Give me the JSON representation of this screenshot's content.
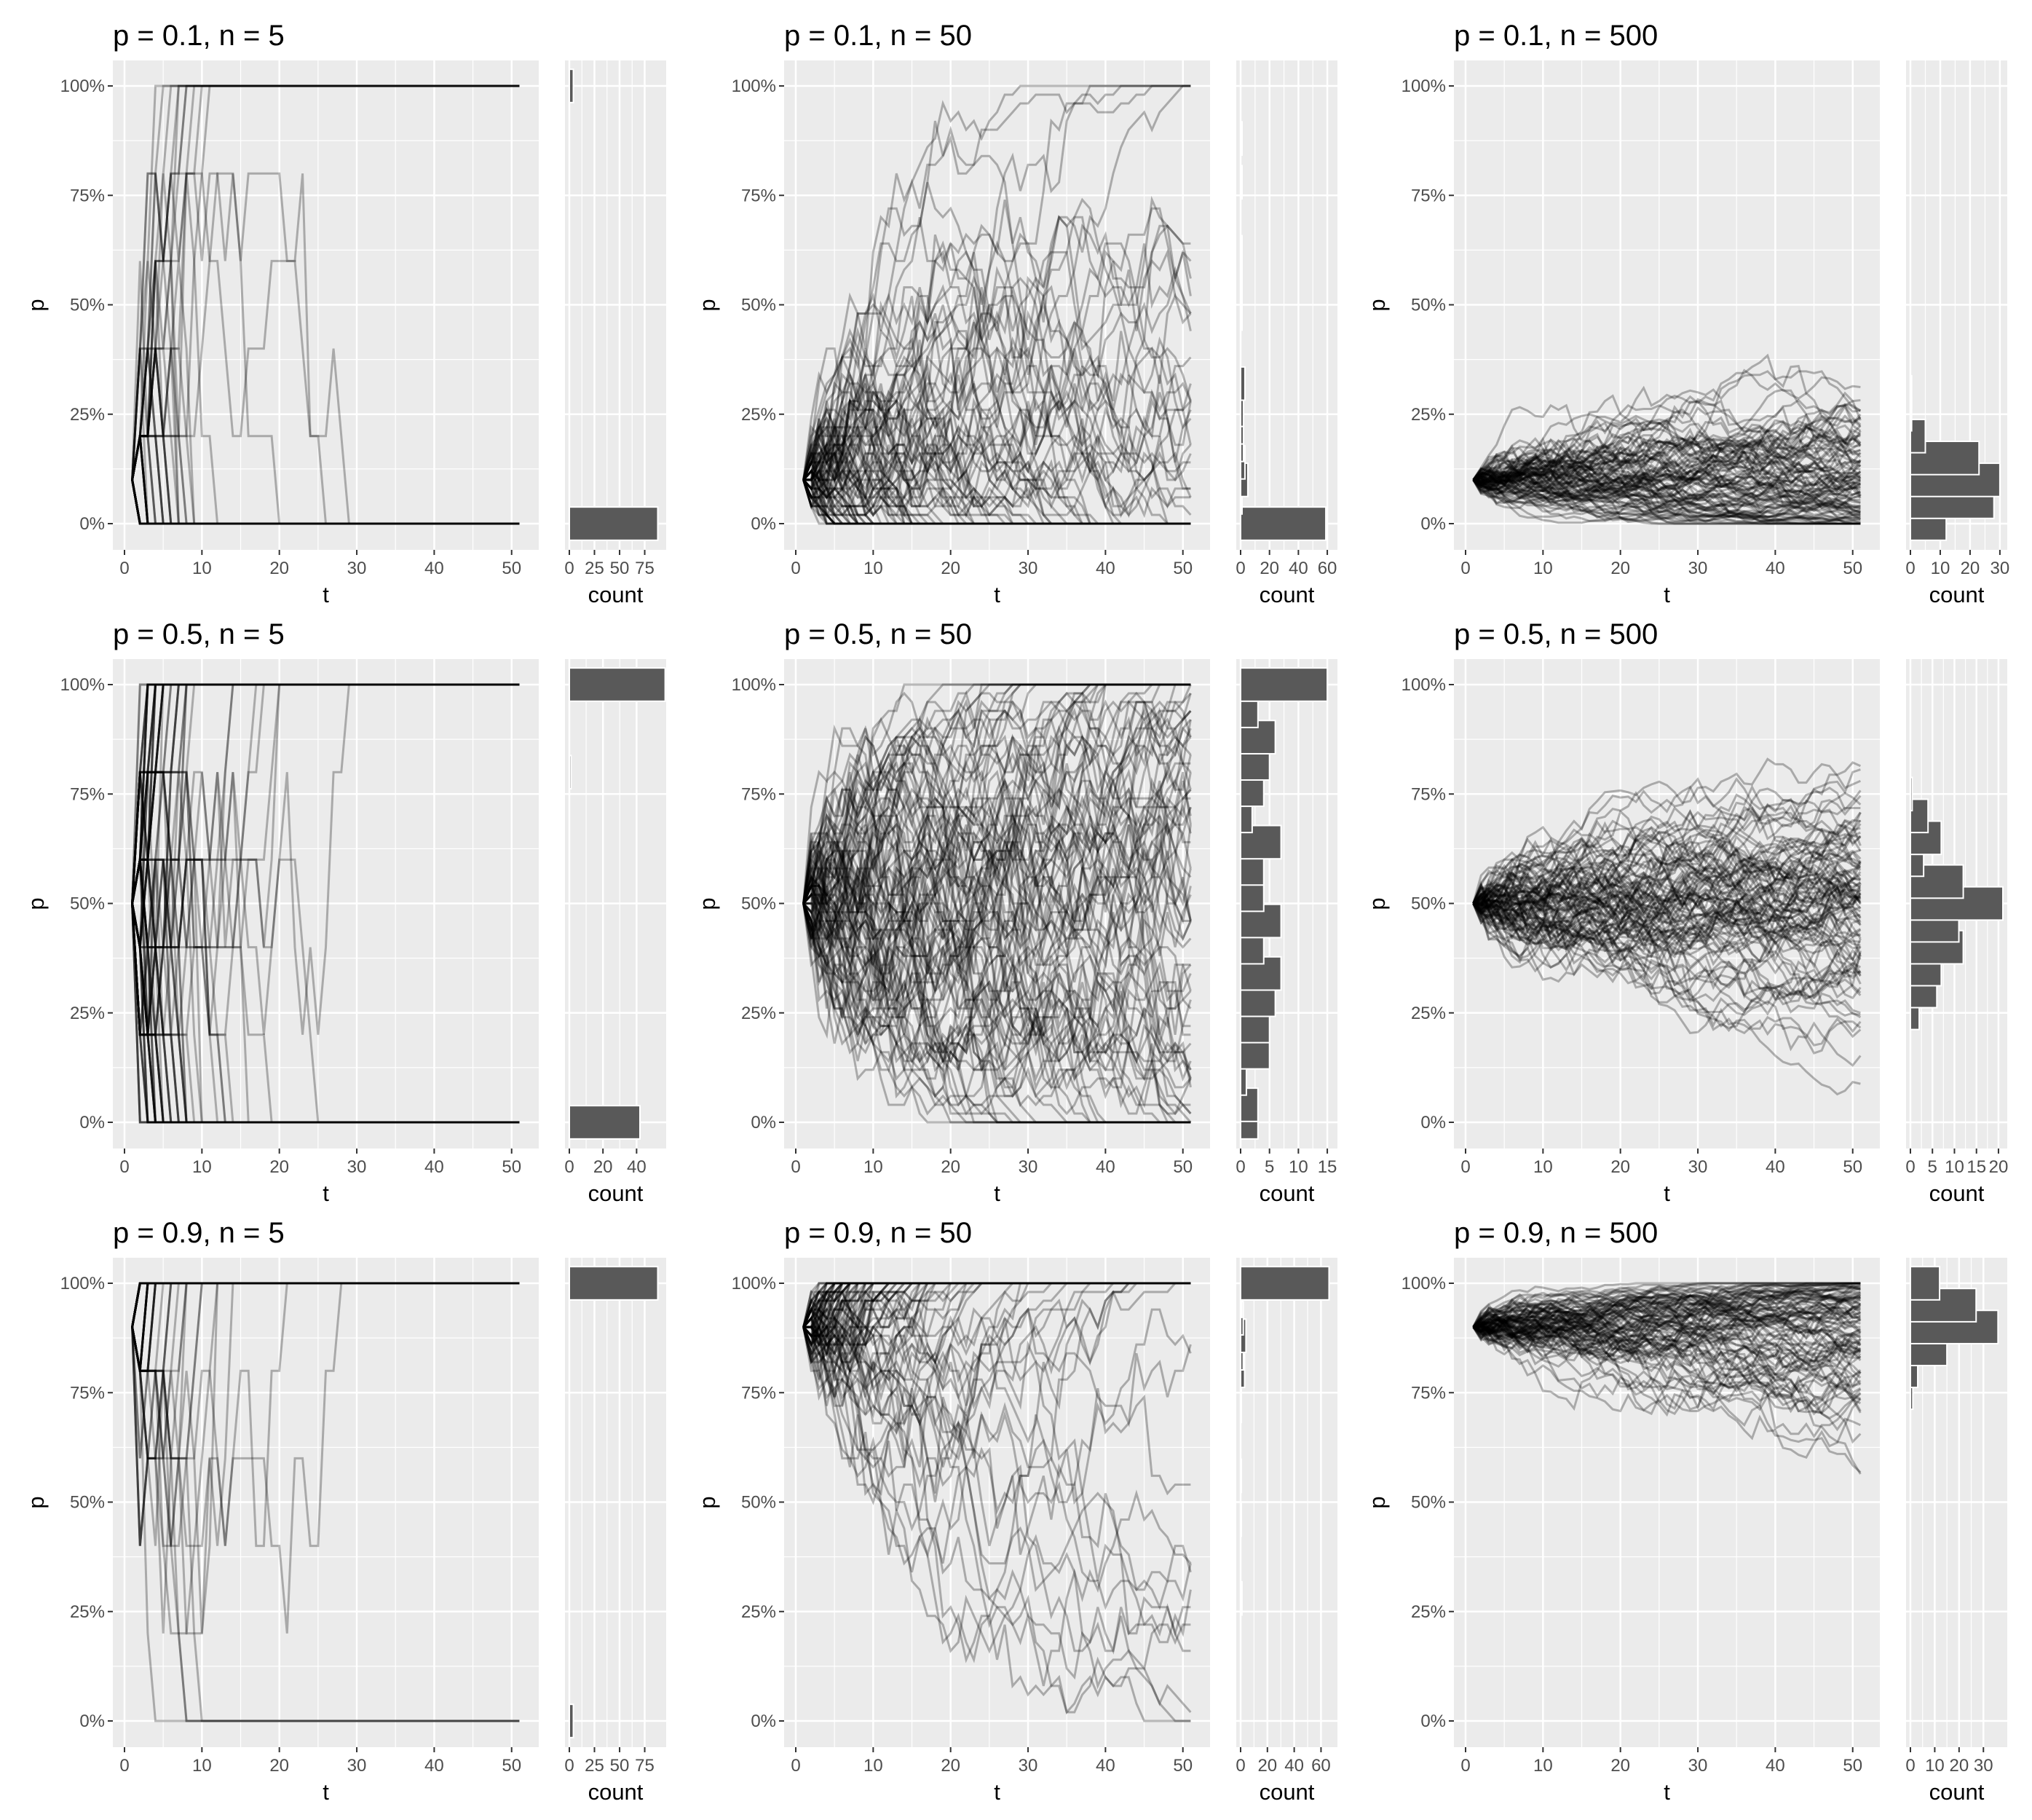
{
  "figure": {
    "background": "#ffffff",
    "panel_background": "#ebebeb",
    "grid_color": "#ffffff",
    "line_color": "#000000",
    "bar_fill": "#595959",
    "bar_outline": "#ffffff",
    "tick_color": "#333333"
  },
  "chart_data": [
    {
      "title": "p = 0.1, n = 5",
      "p0": 0.1,
      "n": 5,
      "type": "line",
      "xlabel": "t",
      "ylabel": "p",
      "xlim": [
        0,
        52
      ],
      "ylim": [
        0,
        1
      ],
      "x_ticks": [
        0,
        10,
        20,
        30,
        40,
        50
      ],
      "y_ticks": [
        "0%",
        "25%",
        "50%",
        "75%",
        "100%"
      ],
      "lines_description_count": 100,
      "hist": {
        "xlabel": "count",
        "x_ticks": [
          0,
          25,
          50,
          75
        ],
        "xlim": [
          0,
          92
        ],
        "bins": [
          {
            "p": 0.0,
            "count": 88
          },
          {
            "p": 1.0,
            "count": 4
          }
        ]
      }
    },
    {
      "title": "p = 0.1, n = 50",
      "p0": 0.1,
      "n": 50,
      "type": "line",
      "xlabel": "t",
      "ylabel": "p",
      "xlim": [
        0,
        52
      ],
      "ylim": [
        0,
        1
      ],
      "x_ticks": [
        0,
        10,
        20,
        30,
        40,
        50
      ],
      "y_ticks": [
        "0%",
        "25%",
        "50%",
        "75%",
        "100%"
      ],
      "hist": {
        "xlabel": "count",
        "x_ticks": [
          0,
          20,
          40,
          60
        ],
        "xlim": [
          0,
          64
        ],
        "bins": [
          {
            "p": 0.0,
            "count": 59
          },
          {
            "p": 0.06,
            "count": 1
          },
          {
            "p": 0.1,
            "count": 5
          },
          {
            "p": 0.14,
            "count": 3
          },
          {
            "p": 0.18,
            "count": 2
          },
          {
            "p": 0.22,
            "count": 2
          },
          {
            "p": 0.26,
            "count": 2
          },
          {
            "p": 0.32,
            "count": 3
          },
          {
            "p": 0.48,
            "count": 1
          },
          {
            "p": 0.52,
            "count": 1
          },
          {
            "p": 0.56,
            "count": 1
          },
          {
            "p": 0.6,
            "count": 1
          },
          {
            "p": 0.62,
            "count": 1
          },
          {
            "p": 0.78,
            "count": 1
          },
          {
            "p": 0.88,
            "count": 1
          }
        ]
      }
    },
    {
      "title": "p = 0.1, n = 500",
      "p0": 0.1,
      "n": 500,
      "type": "line",
      "xlabel": "t",
      "ylabel": "p",
      "xlim": [
        0,
        52
      ],
      "ylim": [
        0,
        1
      ],
      "x_ticks": [
        0,
        10,
        20,
        30,
        40,
        50
      ],
      "y_ticks": [
        "0%",
        "25%",
        "50%",
        "75%",
        "100%"
      ],
      "hist": {
        "xlabel": "count",
        "x_ticks": [
          0,
          10,
          20,
          30
        ],
        "xlim": [
          0,
          31
        ],
        "bins": [
          {
            "p": 0.0,
            "count": 12
          },
          {
            "p": 0.05,
            "count": 28
          },
          {
            "p": 0.1,
            "count": 30
          },
          {
            "p": 0.15,
            "count": 23
          },
          {
            "p": 0.2,
            "count": 5
          },
          {
            "p": 0.25,
            "count": 0.4
          },
          {
            "p": 0.3,
            "count": 0.4
          }
        ]
      }
    },
    {
      "title": "p = 0.5, n = 5",
      "p0": 0.5,
      "n": 5,
      "type": "line",
      "xlabel": "t",
      "ylabel": "p",
      "xlim": [
        0,
        52
      ],
      "ylim": [
        0,
        1
      ],
      "x_ticks": [
        0,
        10,
        20,
        30,
        40,
        50
      ],
      "y_ticks": [
        "0%",
        "25%",
        "50%",
        "75%",
        "100%"
      ],
      "hist": {
        "xlabel": "count",
        "x_ticks": [
          0,
          20,
          40
        ],
        "xlim": [
          0,
          55
        ],
        "bins": [
          {
            "p": 0.0,
            "count": 42
          },
          {
            "p": 0.8,
            "count": 1
          },
          {
            "p": 1.0,
            "count": 57
          }
        ]
      }
    },
    {
      "title": "p = 0.5, n = 50",
      "p0": 0.5,
      "n": 50,
      "type": "line",
      "xlabel": "t",
      "ylabel": "p",
      "xlim": [
        0,
        52
      ],
      "ylim": [
        0,
        1
      ],
      "x_ticks": [
        0,
        10,
        20,
        30,
        40,
        50
      ],
      "y_ticks": [
        "0%",
        "25%",
        "50%",
        "75%",
        "100%"
      ],
      "hist": {
        "xlabel": "count",
        "x_ticks": [
          0,
          5,
          10,
          15
        ],
        "xlim": [
          0,
          16
        ],
        "bins": [
          {
            "p": 0.0,
            "count": 3
          },
          {
            "p": 0.04,
            "count": 3
          },
          {
            "p": 0.1,
            "count": 1
          },
          {
            "p": 0.16,
            "count": 5
          },
          {
            "p": 0.22,
            "count": 5
          },
          {
            "p": 0.28,
            "count": 6
          },
          {
            "p": 0.34,
            "count": 7
          },
          {
            "p": 0.4,
            "count": 4
          },
          {
            "p": 0.46,
            "count": 7
          },
          {
            "p": 0.52,
            "count": 4
          },
          {
            "p": 0.58,
            "count": 4
          },
          {
            "p": 0.64,
            "count": 7
          },
          {
            "p": 0.7,
            "count": 2
          },
          {
            "p": 0.76,
            "count": 4
          },
          {
            "p": 0.82,
            "count": 5
          },
          {
            "p": 0.88,
            "count": 6
          },
          {
            "p": 0.94,
            "count": 3
          },
          {
            "p": 1.0,
            "count": 15
          }
        ]
      }
    },
    {
      "title": "p = 0.5, n = 500",
      "p0": 0.5,
      "n": 500,
      "type": "line",
      "xlabel": "t",
      "ylabel": "p",
      "xlim": [
        0,
        52
      ],
      "ylim": [
        0,
        1
      ],
      "x_ticks": [
        0,
        10,
        20,
        30,
        40,
        50
      ],
      "y_ticks": [
        "0%",
        "25%",
        "50%",
        "75%",
        "100%"
      ],
      "hist": {
        "xlabel": "count",
        "x_ticks": [
          0,
          5,
          10,
          15,
          20
        ],
        "xlim": [
          0,
          21
        ],
        "bins": [
          {
            "p": 0.25,
            "count": 2
          },
          {
            "p": 0.3,
            "count": 6
          },
          {
            "p": 0.35,
            "count": 7
          },
          {
            "p": 0.4,
            "count": 12
          },
          {
            "p": 0.45,
            "count": 11
          },
          {
            "p": 0.5,
            "count": 21
          },
          {
            "p": 0.55,
            "count": 12
          },
          {
            "p": 0.6,
            "count": 3
          },
          {
            "p": 0.65,
            "count": 7
          },
          {
            "p": 0.7,
            "count": 4
          },
          {
            "p": 0.75,
            "count": 0.4
          }
        ]
      }
    },
    {
      "title": "p = 0.9, n = 5",
      "p0": 0.9,
      "n": 5,
      "type": "line",
      "xlabel": "t",
      "ylabel": "p",
      "xlim": [
        0,
        52
      ],
      "ylim": [
        0,
        1
      ],
      "x_ticks": [
        0,
        10,
        20,
        30,
        40,
        50
      ],
      "y_ticks": [
        "0%",
        "25%",
        "50%",
        "75%",
        "100%"
      ],
      "hist": {
        "xlabel": "count",
        "x_ticks": [
          0,
          25,
          50,
          75
        ],
        "xlim": [
          0,
          92
        ],
        "bins": [
          {
            "p": 0.0,
            "count": 4
          },
          {
            "p": 1.0,
            "count": 88
          }
        ]
      }
    },
    {
      "title": "p = 0.9, n = 50",
      "p0": 0.9,
      "n": 50,
      "type": "line",
      "xlabel": "t",
      "ylabel": "p",
      "xlim": [
        0,
        52
      ],
      "ylim": [
        0,
        1
      ],
      "x_ticks": [
        0,
        10,
        20,
        30,
        40,
        50
      ],
      "y_ticks": [
        "0%",
        "25%",
        "50%",
        "75%",
        "100%"
      ],
      "hist": {
        "xlabel": "count",
        "x_ticks": [
          0,
          20,
          40,
          60
        ],
        "xlim": [
          0,
          69
        ],
        "bins": [
          {
            "p": 0.28,
            "count": 1
          },
          {
            "p": 0.46,
            "count": 0.5
          },
          {
            "p": 0.56,
            "count": 0.5
          },
          {
            "p": 0.72,
            "count": 0.5
          },
          {
            "p": 0.8,
            "count": 3
          },
          {
            "p": 0.84,
            "count": 2
          },
          {
            "p": 0.88,
            "count": 4
          },
          {
            "p": 0.92,
            "count": 2
          },
          {
            "p": 0.96,
            "count": 1
          },
          {
            "p": 1.0,
            "count": 66
          }
        ]
      }
    },
    {
      "title": "p = 0.9, n = 500",
      "p0": 0.9,
      "n": 500,
      "type": "line",
      "xlabel": "t",
      "ylabel": "p",
      "xlim": [
        0,
        52
      ],
      "ylim": [
        0,
        1
      ],
      "x_ticks": [
        0,
        10,
        20,
        30,
        40,
        50
      ],
      "y_ticks": [
        "0%",
        "25%",
        "50%",
        "75%",
        "100%"
      ],
      "hist": {
        "xlabel": "count",
        "x_ticks": [
          0,
          10,
          20,
          30
        ],
        "xlim": [
          0,
          38
        ],
        "bins": [
          {
            "p": 0.75,
            "count": 1
          },
          {
            "p": 0.8,
            "count": 3
          },
          {
            "p": 0.85,
            "count": 15
          },
          {
            "p": 0.9,
            "count": 36
          },
          {
            "p": 0.95,
            "count": 27
          },
          {
            "p": 1.0,
            "count": 12
          }
        ]
      }
    }
  ]
}
